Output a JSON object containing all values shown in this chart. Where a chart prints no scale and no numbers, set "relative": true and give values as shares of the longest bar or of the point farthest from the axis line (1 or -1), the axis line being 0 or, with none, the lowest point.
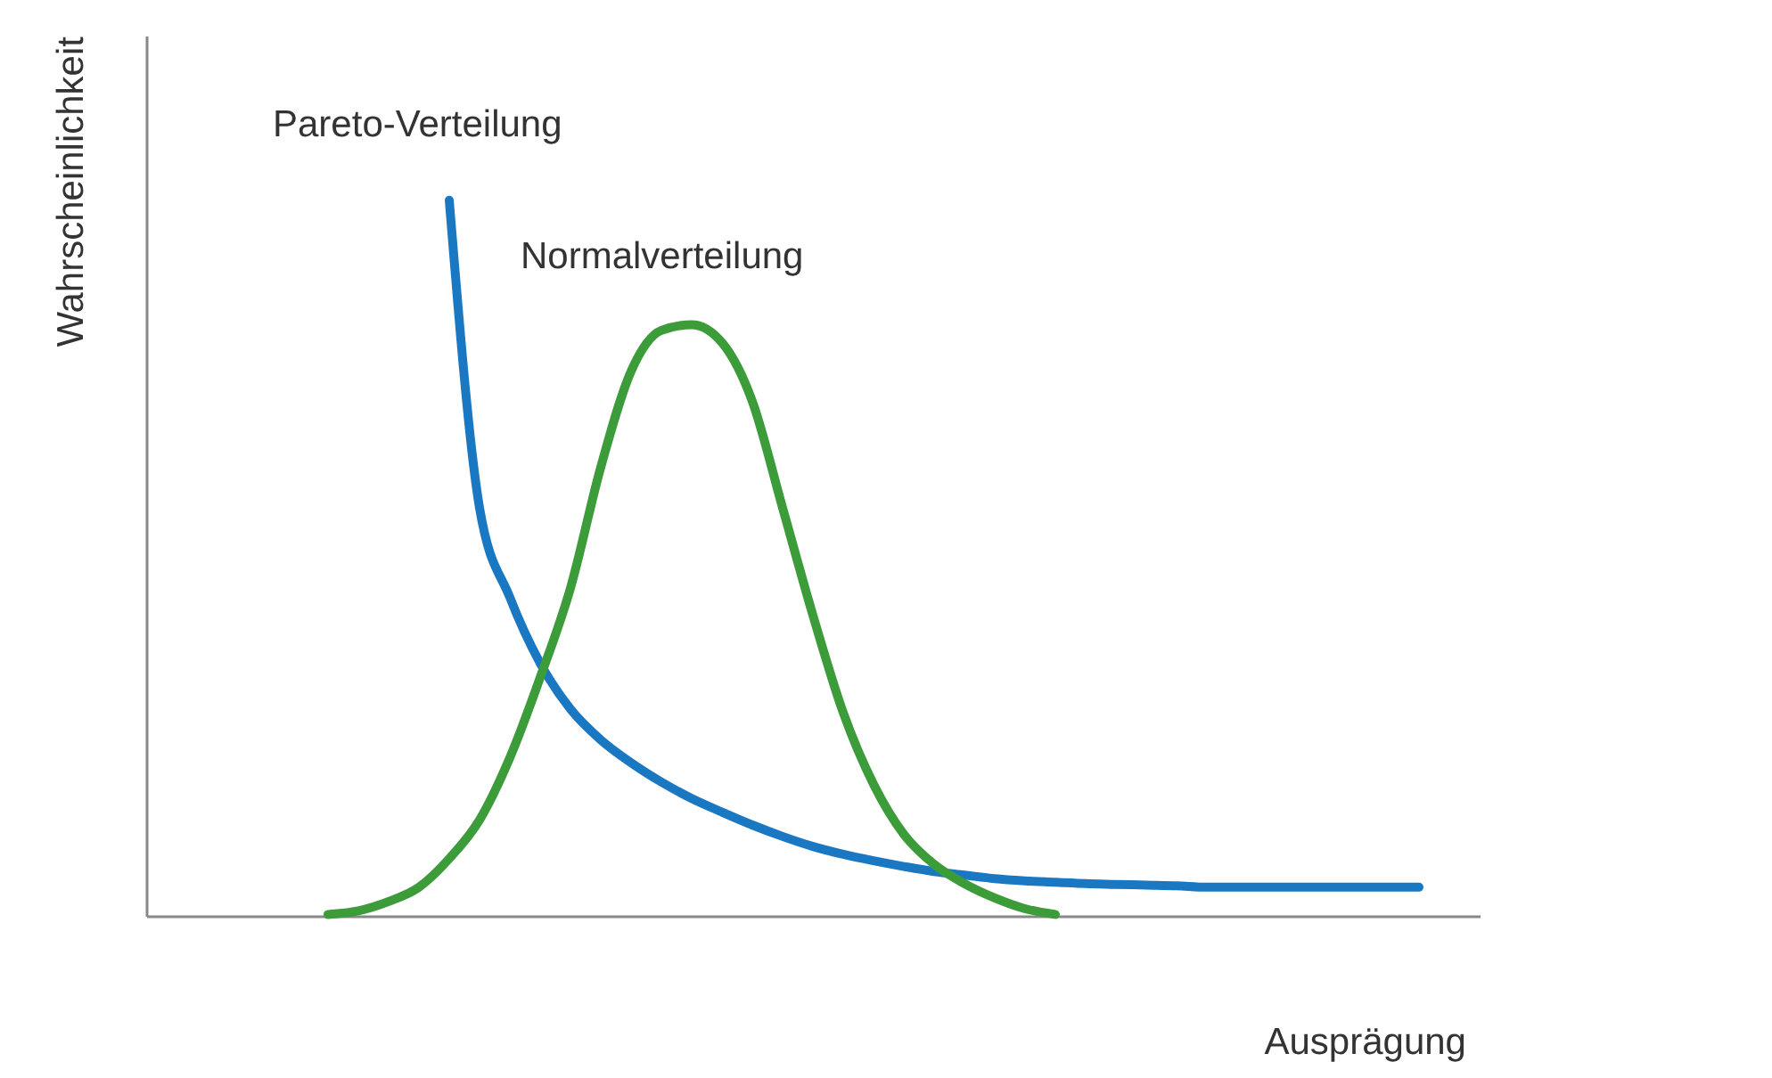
{
  "chart_data": {
    "type": "line",
    "relative": true,
    "xlabel": "Ausprägung",
    "ylabel": "Wahrscheinlichkeit",
    "tick_labels": false,
    "categories": [
      null,
      null,
      null,
      null,
      null,
      null,
      null,
      null,
      null,
      null,
      null,
      null,
      null,
      null,
      null,
      null,
      null,
      null,
      null,
      null,
      null,
      null,
      null,
      null,
      null,
      null,
      null,
      null,
      null,
      null,
      null,
      null,
      null,
      null,
      null,
      null,
      null,
      null,
      null,
      null,
      null,
      null,
      null,
      null,
      null
    ],
    "series": [
      {
        "name": "Pareto-Verteilung",
        "color": "#1a78c2",
        "values": [
          null,
          null,
          null,
          null,
          null,
          null,
          null,
          null,
          null,
          null,
          1.0,
          0.57,
          0.445,
          0.353,
          0.289,
          0.246,
          0.214,
          0.187,
          0.164,
          0.145,
          0.127,
          0.111,
          0.097,
          0.086,
          0.077,
          0.069,
          0.062,
          0.057,
          0.052,
          0.049,
          0.047,
          0.045,
          0.044,
          0.043,
          0.042,
          0.04,
          0.04,
          0.04,
          0.04,
          0.04,
          0.04,
          0.04,
          0.04,
          null,
          null
        ]
      },
      {
        "name": "Normalverteilung",
        "color": "#3c9c3a",
        "values": [
          null,
          null,
          null,
          null,
          null,
          null,
          0.002,
          0.007,
          0.02,
          0.04,
          0.08,
          0.134,
          0.221,
          0.333,
          0.458,
          0.627,
          0.761,
          0.818,
          0.826,
          0.801,
          0.719,
          0.57,
          0.42,
          0.284,
          0.184,
          0.114,
          0.072,
          0.045,
          0.025,
          0.01,
          0.002,
          null,
          null,
          null,
          null,
          null,
          null,
          null,
          null,
          null,
          null,
          null,
          null,
          null,
          null
        ]
      }
    ]
  }
}
